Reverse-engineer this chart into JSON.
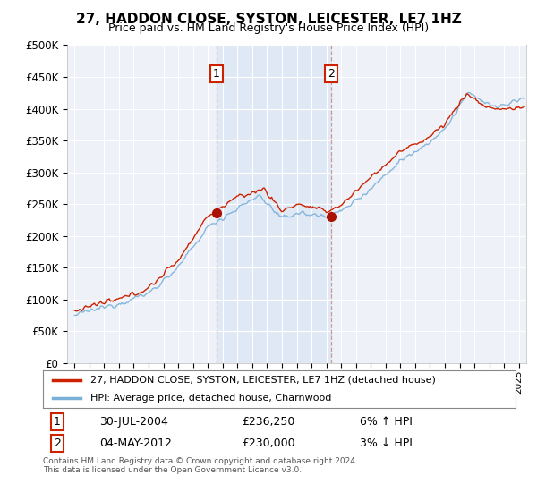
{
  "title": "27, HADDON CLOSE, SYSTON, LEICESTER, LE7 1HZ",
  "subtitle": "Price paid vs. HM Land Registry's House Price Index (HPI)",
  "ylabel_ticks": [
    "£0",
    "£50K",
    "£100K",
    "£150K",
    "£200K",
    "£250K",
    "£300K",
    "£350K",
    "£400K",
    "£450K",
    "£500K"
  ],
  "ytick_values": [
    0,
    50000,
    100000,
    150000,
    200000,
    250000,
    300000,
    350000,
    400000,
    450000,
    500000
  ],
  "xlim_start": 1994.5,
  "xlim_end": 2025.5,
  "ylim": [
    0,
    500000
  ],
  "background_color": "#ffffff",
  "plot_bg_color": "#eef2f8",
  "shade_color": "#dce6f5",
  "grid_color": "#ffffff",
  "sale1_x": 2004.58,
  "sale1_y": 236250,
  "sale2_x": 2012.34,
  "sale2_y": 230000,
  "legend_line1": "27, HADDON CLOSE, SYSTON, LEICESTER, LE7 1HZ (detached house)",
  "legend_line2": "HPI: Average price, detached house, Charnwood",
  "annotation1_date": "30-JUL-2004",
  "annotation1_price": "£236,250",
  "annotation1_hpi": "6% ↑ HPI",
  "annotation2_date": "04-MAY-2012",
  "annotation2_price": "£230,000",
  "annotation2_hpi": "3% ↓ HPI",
  "footer": "Contains HM Land Registry data © Crown copyright and database right 2024.\nThis data is licensed under the Open Government Licence v3.0.",
  "line_color_red": "#cc2200",
  "line_color_blue": "#7ab0d8",
  "marker_color_red": "#aa1100",
  "vline_color": "#cc9999",
  "label_box_color": "#cc2200",
  "title_fontsize": 11,
  "subtitle_fontsize": 9
}
